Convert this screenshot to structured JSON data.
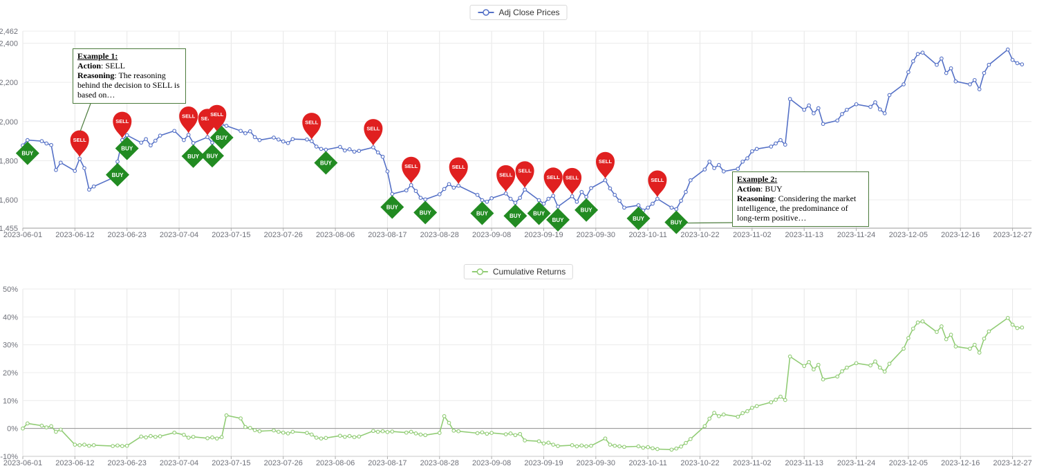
{
  "colors": {
    "annotation_border": "#4a7a3a",
    "axis_label": "#6e7079"
  },
  "chart_data": [
    {
      "type": "line",
      "name": "Adj Close Prices",
      "color": "#5470c6",
      "buy_label": "BUY",
      "sell_label": "SELL",
      "buy_color": "#228B22",
      "sell_color": "#e02020",
      "ylim": [
        1455,
        2462
      ],
      "yticks": [
        {
          "v": 2462,
          "label": "2,462"
        },
        {
          "v": 2400,
          "label": "2,400"
        },
        {
          "v": 2200,
          "label": "2,200"
        },
        {
          "v": 2000,
          "label": "2,000"
        },
        {
          "v": 1800,
          "label": "1,800"
        },
        {
          "v": 1600,
          "label": "1,600"
        },
        {
          "v": 1455,
          "label": "1,455"
        }
      ],
      "x_tick_labels": [
        "2023-06-01",
        "2023-06-12",
        "2023-06-23",
        "2023-07-04",
        "2023-07-15",
        "2023-07-26",
        "2023-08-06",
        "2023-08-17",
        "2023-08-28",
        "2023-09-08",
        "2023-09-19",
        "2023-09-30",
        "2023-10-11",
        "2023-10-22",
        "2023-11-02",
        "2023-11-13",
        "2023-11-24",
        "2023-12-05",
        "2023-12-16",
        "2023-12-27"
      ],
      "dates": [
        "2023-06-01",
        "2023-06-02",
        "2023-06-05",
        "2023-06-06",
        "2023-06-07",
        "2023-06-08",
        "2023-06-09",
        "2023-06-12",
        "2023-06-13",
        "2023-06-14",
        "2023-06-15",
        "2023-06-16",
        "2023-06-20",
        "2023-06-21",
        "2023-06-22",
        "2023-06-23",
        "2023-06-26",
        "2023-06-27",
        "2023-06-28",
        "2023-06-29",
        "2023-06-30",
        "2023-07-03",
        "2023-07-05",
        "2023-07-06",
        "2023-07-07",
        "2023-07-10",
        "2023-07-11",
        "2023-07-12",
        "2023-07-13",
        "2023-07-14",
        "2023-07-17",
        "2023-07-18",
        "2023-07-19",
        "2023-07-20",
        "2023-07-21",
        "2023-07-24",
        "2023-07-25",
        "2023-07-26",
        "2023-07-27",
        "2023-07-28",
        "2023-07-31",
        "2023-08-01",
        "2023-08-02",
        "2023-08-03",
        "2023-08-04",
        "2023-08-07",
        "2023-08-08",
        "2023-08-09",
        "2023-08-10",
        "2023-08-11",
        "2023-08-14",
        "2023-08-15",
        "2023-08-16",
        "2023-08-17",
        "2023-08-18",
        "2023-08-21",
        "2023-08-22",
        "2023-08-23",
        "2023-08-24",
        "2023-08-25",
        "2023-08-28",
        "2023-08-29",
        "2023-08-30",
        "2023-08-31",
        "2023-09-01",
        "2023-09-05",
        "2023-09-06",
        "2023-09-07",
        "2023-09-08",
        "2023-09-11",
        "2023-09-12",
        "2023-09-13",
        "2023-09-14",
        "2023-09-15",
        "2023-09-18",
        "2023-09-19",
        "2023-09-20",
        "2023-09-21",
        "2023-09-22",
        "2023-09-25",
        "2023-09-26",
        "2023-09-27",
        "2023-09-28",
        "2023-09-29",
        "2023-10-02",
        "2023-10-03",
        "2023-10-04",
        "2023-10-05",
        "2023-10-06",
        "2023-10-09",
        "2023-10-10",
        "2023-10-11",
        "2023-10-12",
        "2023-10-13",
        "2023-10-16",
        "2023-10-17",
        "2023-10-18",
        "2023-10-19",
        "2023-10-20",
        "2023-10-23",
        "2023-10-24",
        "2023-10-25",
        "2023-10-26",
        "2023-10-27",
        "2023-10-30",
        "2023-10-31",
        "2023-11-01",
        "2023-11-02",
        "2023-11-03",
        "2023-11-06",
        "2023-11-07",
        "2023-11-08",
        "2023-11-09",
        "2023-11-10",
        "2023-11-13",
        "2023-11-14",
        "2023-11-15",
        "2023-11-16",
        "2023-11-17",
        "2023-11-20",
        "2023-11-21",
        "2023-11-22",
        "2023-11-24",
        "2023-11-27",
        "2023-11-28",
        "2023-11-29",
        "2023-11-30",
        "2023-12-01",
        "2023-12-04",
        "2023-12-05",
        "2023-12-06",
        "2023-12-07",
        "2023-12-08",
        "2023-12-11",
        "2023-12-12",
        "2023-12-13",
        "2023-12-14",
        "2023-12-15",
        "2023-12-18",
        "2023-12-19",
        "2023-12-20",
        "2023-12-21",
        "2023-12-22",
        "2023-12-26",
        "2023-12-27",
        "2023-12-28",
        "2023-12-29"
      ],
      "values": [
        1878,
        1905,
        1900,
        1888,
        1880,
        1752,
        1790,
        1748,
        1810,
        1762,
        1652,
        1668,
        1712,
        1795,
        1905,
        1930,
        1892,
        1910,
        1878,
        1902,
        1928,
        1952,
        1905,
        1932,
        1890,
        1920,
        1892,
        1940,
        1985,
        1978,
        1952,
        1940,
        1950,
        1920,
        1905,
        1918,
        1908,
        1898,
        1890,
        1910,
        1908,
        1900,
        1872,
        1860,
        1856,
        1870,
        1852,
        1858,
        1846,
        1850,
        1868,
        1842,
        1820,
        1745,
        1630,
        1648,
        1675,
        1645,
        1610,
        1602,
        1628,
        1655,
        1680,
        1662,
        1672,
        1625,
        1598,
        1590,
        1608,
        1632,
        1605,
        1585,
        1610,
        1652,
        1598,
        1580,
        1605,
        1620,
        1565,
        1618,
        1590,
        1640,
        1615,
        1660,
        1700,
        1658,
        1625,
        1595,
        1560,
        1572,
        1545,
        1560,
        1580,
        1605,
        1560,
        1552,
        1595,
        1640,
        1700,
        1755,
        1795,
        1762,
        1778,
        1745,
        1758,
        1795,
        1812,
        1848,
        1860,
        1872,
        1888,
        1905,
        1882,
        2115,
        2060,
        2082,
        2042,
        2068,
        1988,
        2005,
        2038,
        2060,
        2088,
        2075,
        2098,
        2062,
        2042,
        2135,
        2190,
        2252,
        2308,
        2345,
        2352,
        2290,
        2322,
        2248,
        2272,
        2205,
        2190,
        2212,
        2165,
        2248,
        2290,
        2368,
        2315,
        2298,
        2292
      ],
      "signals": [
        {
          "date": "2023-06-02",
          "action": "BUY"
        },
        {
          "date": "2023-06-13",
          "action": "SELL"
        },
        {
          "date": "2023-06-21",
          "action": "BUY"
        },
        {
          "date": "2023-06-22",
          "action": "SELL"
        },
        {
          "date": "2023-06-23",
          "action": "BUY"
        },
        {
          "date": "2023-07-06",
          "action": "SELL"
        },
        {
          "date": "2023-07-07",
          "action": "BUY"
        },
        {
          "date": "2023-07-10",
          "action": "SELL"
        },
        {
          "date": "2023-07-11",
          "action": "BUY"
        },
        {
          "date": "2023-07-12",
          "action": "SELL"
        },
        {
          "date": "2023-07-13",
          "action": "BUY"
        },
        {
          "date": "2023-08-01",
          "action": "SELL"
        },
        {
          "date": "2023-08-04",
          "action": "BUY"
        },
        {
          "date": "2023-08-14",
          "action": "SELL"
        },
        {
          "date": "2023-08-18",
          "action": "BUY"
        },
        {
          "date": "2023-08-22",
          "action": "SELL"
        },
        {
          "date": "2023-08-25",
          "action": "BUY"
        },
        {
          "date": "2023-09-01",
          "action": "SELL"
        },
        {
          "date": "2023-09-06",
          "action": "BUY"
        },
        {
          "date": "2023-09-11",
          "action": "SELL"
        },
        {
          "date": "2023-09-13",
          "action": "BUY"
        },
        {
          "date": "2023-09-15",
          "action": "SELL"
        },
        {
          "date": "2023-09-18",
          "action": "BUY"
        },
        {
          "date": "2023-09-21",
          "action": "SELL"
        },
        {
          "date": "2023-09-22",
          "action": "BUY"
        },
        {
          "date": "2023-09-25",
          "action": "SELL"
        },
        {
          "date": "2023-09-28",
          "action": "BUY"
        },
        {
          "date": "2023-10-02",
          "action": "SELL"
        },
        {
          "date": "2023-10-09",
          "action": "BUY"
        },
        {
          "date": "2023-10-13",
          "action": "SELL"
        },
        {
          "date": "2023-10-17",
          "action": "BUY"
        }
      ]
    },
    {
      "type": "line",
      "name": "Cumulative Returns",
      "color": "#91cc75",
      "zero_line": true,
      "ylim": [
        -10,
        50
      ],
      "yticks": [
        {
          "v": 50,
          "label": "50%"
        },
        {
          "v": 40,
          "label": "40%"
        },
        {
          "v": 30,
          "label": "30%"
        },
        {
          "v": 20,
          "label": "20%"
        },
        {
          "v": 10,
          "label": "10%"
        },
        {
          "v": 0,
          "label": "0%"
        },
        {
          "v": -10,
          "label": "-10%"
        }
      ],
      "x_tick_labels": [
        "2023-06-01",
        "2023-06-12",
        "2023-06-23",
        "2023-07-04",
        "2023-07-15",
        "2023-07-26",
        "2023-08-06",
        "2023-08-17",
        "2023-08-28",
        "2023-09-08",
        "2023-09-19",
        "2023-09-30",
        "2023-10-11",
        "2023-10-22",
        "2023-11-02",
        "2023-11-13",
        "2023-11-24",
        "2023-12-05",
        "2023-12-16",
        "2023-12-27"
      ],
      "dates": [
        "2023-06-01",
        "2023-06-02",
        "2023-06-05",
        "2023-06-06",
        "2023-06-07",
        "2023-06-08",
        "2023-06-09",
        "2023-06-12",
        "2023-06-13",
        "2023-06-14",
        "2023-06-15",
        "2023-06-16",
        "2023-06-20",
        "2023-06-21",
        "2023-06-22",
        "2023-06-23",
        "2023-06-26",
        "2023-06-27",
        "2023-06-28",
        "2023-06-29",
        "2023-06-30",
        "2023-07-03",
        "2023-07-05",
        "2023-07-06",
        "2023-07-07",
        "2023-07-10",
        "2023-07-11",
        "2023-07-12",
        "2023-07-13",
        "2023-07-14",
        "2023-07-17",
        "2023-07-18",
        "2023-07-19",
        "2023-07-20",
        "2023-07-21",
        "2023-07-24",
        "2023-07-25",
        "2023-07-26",
        "2023-07-27",
        "2023-07-28",
        "2023-07-31",
        "2023-08-01",
        "2023-08-02",
        "2023-08-03",
        "2023-08-04",
        "2023-08-07",
        "2023-08-08",
        "2023-08-09",
        "2023-08-10",
        "2023-08-11",
        "2023-08-14",
        "2023-08-15",
        "2023-08-16",
        "2023-08-17",
        "2023-08-18",
        "2023-08-21",
        "2023-08-22",
        "2023-08-23",
        "2023-08-24",
        "2023-08-25",
        "2023-08-28",
        "2023-08-29",
        "2023-08-30",
        "2023-08-31",
        "2023-09-01",
        "2023-09-05",
        "2023-09-06",
        "2023-09-07",
        "2023-09-08",
        "2023-09-11",
        "2023-09-12",
        "2023-09-13",
        "2023-09-14",
        "2023-09-15",
        "2023-09-18",
        "2023-09-19",
        "2023-09-20",
        "2023-09-21",
        "2023-09-22",
        "2023-09-25",
        "2023-09-26",
        "2023-09-27",
        "2023-09-28",
        "2023-09-29",
        "2023-10-02",
        "2023-10-03",
        "2023-10-04",
        "2023-10-05",
        "2023-10-06",
        "2023-10-09",
        "2023-10-10",
        "2023-10-11",
        "2023-10-12",
        "2023-10-13",
        "2023-10-16",
        "2023-10-17",
        "2023-10-18",
        "2023-10-19",
        "2023-10-20",
        "2023-10-23",
        "2023-10-24",
        "2023-10-25",
        "2023-10-26",
        "2023-10-27",
        "2023-10-30",
        "2023-10-31",
        "2023-11-01",
        "2023-11-02",
        "2023-11-03",
        "2023-11-06",
        "2023-11-07",
        "2023-11-08",
        "2023-11-09",
        "2023-11-10",
        "2023-11-13",
        "2023-11-14",
        "2023-11-15",
        "2023-11-16",
        "2023-11-17",
        "2023-11-20",
        "2023-11-21",
        "2023-11-22",
        "2023-11-24",
        "2023-11-27",
        "2023-11-28",
        "2023-11-29",
        "2023-11-30",
        "2023-12-01",
        "2023-12-04",
        "2023-12-05",
        "2023-12-06",
        "2023-12-07",
        "2023-12-08",
        "2023-12-11",
        "2023-12-12",
        "2023-12-13",
        "2023-12-14",
        "2023-12-15",
        "2023-12-18",
        "2023-12-19",
        "2023-12-20",
        "2023-12-21",
        "2023-12-22",
        "2023-12-26",
        "2023-12-27",
        "2023-12-28",
        "2023-12-29"
      ],
      "values": [
        0.0,
        1.8,
        1.0,
        0.4,
        0.8,
        -1.2,
        -0.4,
        -5.8,
        -6.0,
        -5.8,
        -6.2,
        -6.0,
        -6.3,
        -6.1,
        -6.3,
        -6.2,
        -2.9,
        -3.2,
        -2.7,
        -3.0,
        -2.8,
        -1.5,
        -2.3,
        -3.3,
        -3.0,
        -3.5,
        -3.2,
        -3.6,
        -3.1,
        4.7,
        3.6,
        0.5,
        0.2,
        -0.6,
        -1.0,
        -0.7,
        -1.2,
        -1.5,
        -1.8,
        -1.2,
        -1.6,
        -2.2,
        -3.3,
        -3.6,
        -3.4,
        -2.6,
        -3.0,
        -2.7,
        -3.1,
        -2.9,
        -0.9,
        -1.2,
        -1.0,
        -1.3,
        -1.1,
        -1.5,
        -1.2,
        -1.8,
        -2.2,
        -2.4,
        -1.6,
        4.4,
        2.0,
        -0.8,
        -1.0,
        -1.7,
        -1.4,
        -1.9,
        -1.6,
        -2.1,
        -1.8,
        -2.4,
        -2.0,
        -4.3,
        -4.6,
        -5.4,
        -5.1,
        -5.8,
        -6.3,
        -6.0,
        -6.4,
        -6.1,
        -6.4,
        -6.2,
        -3.6,
        -5.8,
        -6.2,
        -6.4,
        -6.6,
        -6.4,
        -6.9,
        -6.7,
        -7.1,
        -7.4,
        -7.6,
        -7.2,
        -6.5,
        -5.2,
        -3.8,
        0.8,
        3.5,
        5.6,
        4.4,
        5.0,
        4.2,
        5.5,
        6.2,
        7.4,
        8.0,
        9.4,
        10.3,
        11.4,
        10.2,
        25.8,
        22.4,
        23.8,
        21.2,
        22.8,
        17.6,
        18.6,
        20.5,
        21.8,
        23.4,
        22.6,
        24.0,
        21.8,
        20.4,
        23.2,
        28.6,
        32.4,
        35.8,
        38.0,
        38.4,
        34.6,
        36.6,
        32.0,
        33.6,
        29.4,
        28.6,
        30.0,
        27.2,
        32.2,
        34.8,
        39.6,
        37.2,
        36.0,
        36.2
      ]
    }
  ],
  "annotations": [
    {
      "title": "Example 1:",
      "action_label": "Action",
      "action_rest": ": SELL",
      "reasoning_label": "Reasoning",
      "reasoning_rest": ": The reasoning behind the decision to SELL is based on…",
      "target_date": "2023-06-13",
      "target_action": "SELL"
    },
    {
      "title": "Example 2:",
      "action_label": "Action",
      "action_rest": ": BUY",
      "reasoning_label": "Reasoning",
      "reasoning_rest": ": Considering the market intelligence, the predominance of long-term positive…",
      "target_date": "2023-10-17",
      "target_action": "BUY"
    }
  ]
}
